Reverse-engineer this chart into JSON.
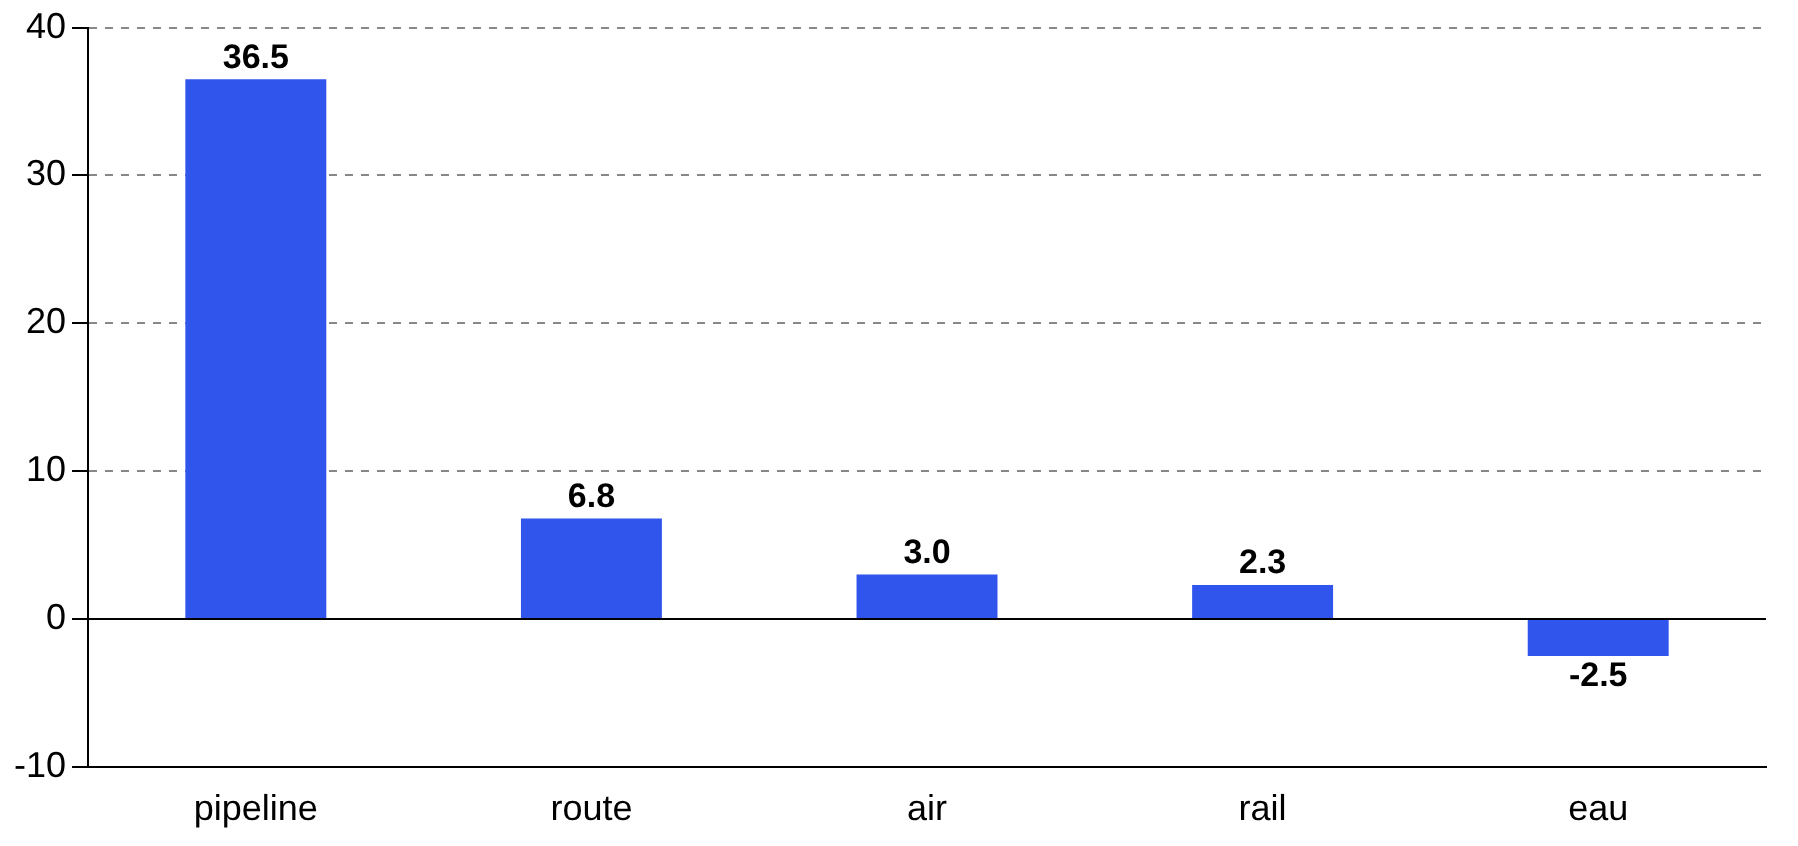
{
  "chart_data": {
    "type": "bar",
    "categories": [
      "pipeline",
      "route",
      "air",
      "rail",
      "eau"
    ],
    "values": [
      36.5,
      6.8,
      3.0,
      2.3,
      -2.5
    ],
    "value_labels": [
      "36.5",
      "6.8",
      "3.0",
      "2.3",
      "-2.5"
    ],
    "ref_lines": [
      {
        "axis": "y",
        "value": 0,
        "color": "#000000"
      }
    ],
    "color": "#2f55ec",
    "ylim": [
      -10,
      40
    ],
    "yticks": [
      -10,
      0,
      10,
      20,
      30,
      40
    ],
    "grid": "y",
    "legend": false
  }
}
